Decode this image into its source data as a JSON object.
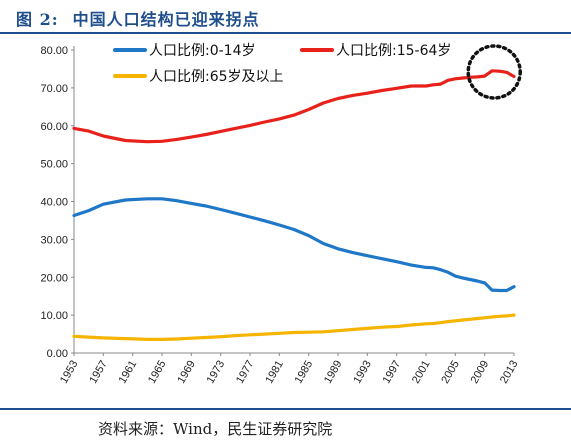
{
  "figure": {
    "label": "图 2:",
    "title": "中国人口结构已迎来拐点",
    "source": "资料来源：Wind，民生证券研究院"
  },
  "chart_data": {
    "type": "line",
    "title": "中国人口结构已迎来拐点",
    "xlabel": "",
    "ylabel": "",
    "ylim": [
      0,
      80
    ],
    "y_ticks": [
      "0.00",
      "10.00",
      "20.00",
      "30.00",
      "40.00",
      "50.00",
      "60.00",
      "70.00",
      "80.00"
    ],
    "x_ticks": [
      "1953",
      "1957",
      "1961",
      "1965",
      "1969",
      "1973",
      "1977",
      "1981",
      "1985",
      "1989",
      "1993",
      "1997",
      "2001",
      "2005",
      "2009",
      "2013"
    ],
    "x": [
      1953,
      1955,
      1957,
      1960,
      1963,
      1965,
      1967,
      1969,
      1971,
      1973,
      1975,
      1977,
      1979,
      1981,
      1983,
      1985,
      1987,
      1989,
      1991,
      1993,
      1995,
      1997,
      1999,
      2001,
      2002,
      2003,
      2004,
      2005,
      2006,
      2007,
      2008,
      2009,
      2010,
      2011,
      2012,
      2013
    ],
    "series": [
      {
        "name": "人口比例:0-14岁",
        "color": "#1f77c8",
        "values": [
          36.3,
          37.6,
          39.3,
          40.4,
          40.7,
          40.7,
          40.2,
          39.5,
          38.8,
          37.9,
          36.9,
          35.9,
          34.9,
          33.8,
          32.6,
          31.0,
          28.9,
          27.5,
          26.5,
          25.7,
          24.9,
          24.1,
          23.2,
          22.6,
          22.5,
          22.0,
          21.3,
          20.3,
          19.8,
          19.4,
          19.0,
          18.5,
          16.6,
          16.5,
          16.5,
          17.5
        ]
      },
      {
        "name": "人口比例:15-64岁",
        "color": "#e8221b",
        "values": [
          59.3,
          58.6,
          57.3,
          56.1,
          55.8,
          55.9,
          56.4,
          57.0,
          57.7,
          58.5,
          59.3,
          60.1,
          61.0,
          61.8,
          62.8,
          64.3,
          66.0,
          67.2,
          68.0,
          68.6,
          69.3,
          69.9,
          70.5,
          70.5,
          70.8,
          71.0,
          72.0,
          72.4,
          72.6,
          72.8,
          72.9,
          73.1,
          74.5,
          74.4,
          74.1,
          73.0
        ]
      },
      {
        "name": "人口比例:65岁及以上",
        "color": "#f5b400",
        "values": [
          4.4,
          4.2,
          4.0,
          3.8,
          3.6,
          3.6,
          3.7,
          3.9,
          4.1,
          4.3,
          4.6,
          4.8,
          5.0,
          5.2,
          5.4,
          5.5,
          5.6,
          5.9,
          6.2,
          6.5,
          6.8,
          7.0,
          7.4,
          7.7,
          7.8,
          8.0,
          8.3,
          8.5,
          8.7,
          8.9,
          9.1,
          9.3,
          9.5,
          9.7,
          9.8,
          10.0
        ]
      }
    ],
    "legend_position": "top",
    "grid": false,
    "annotation": "dotted-circle-around-15-64-peak"
  }
}
